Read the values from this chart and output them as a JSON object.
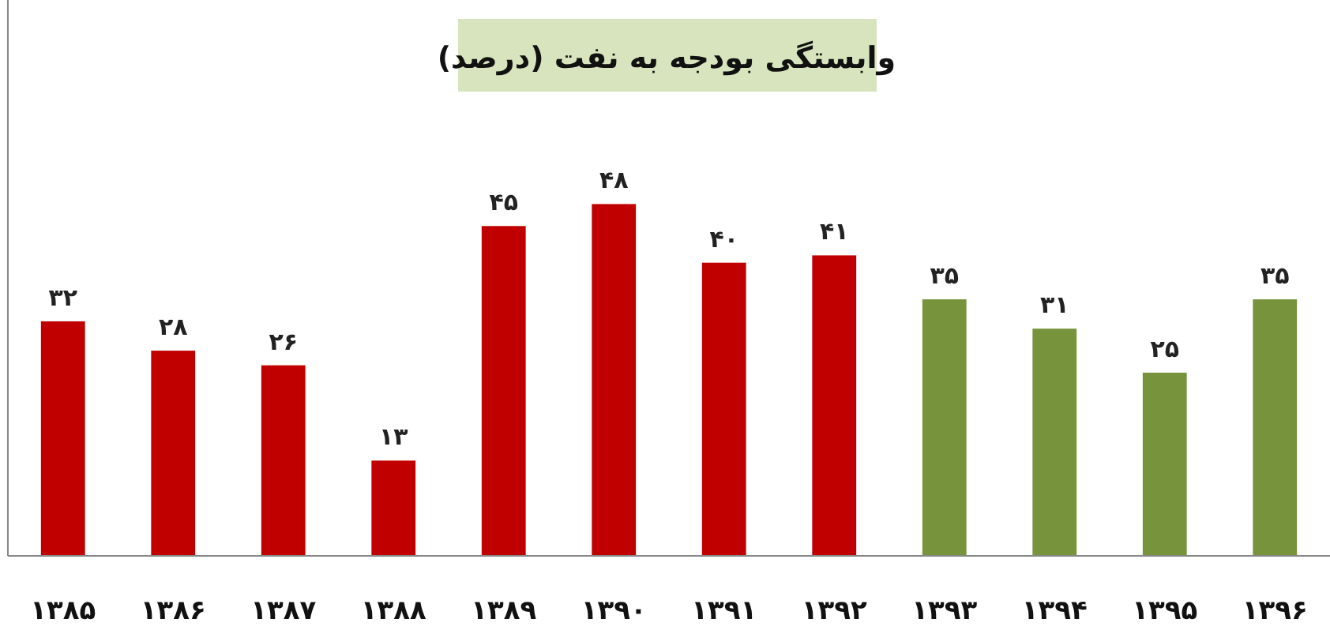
{
  "chart_data": {
    "type": "bar",
    "title": "وابستگی بودجه به نفت  (درصد)",
    "categories": [
      "۱۳۸۵",
      "۱۳۸۶",
      "۱۳۸۷",
      "۱۳۸۸",
      "۱۳۸۹",
      "۱۳۹۰",
      "۱۳۹۱",
      "۱۳۹۲",
      "۱۳۹۳",
      "۱۳۹۴",
      "۱۳۹۵",
      "۱۳۹۶"
    ],
    "values": [
      32,
      28,
      26,
      13,
      45,
      48,
      40,
      41,
      35,
      31,
      25,
      35
    ],
    "value_labels": [
      "۳۲",
      "۲۸",
      "۲۶",
      "۱۳",
      "۴۵",
      "۴۸",
      "۴۰",
      "۴۱",
      "۳۵",
      "۳۱",
      "۲۵",
      "۳۵"
    ],
    "colors": [
      "#c00000",
      "#c00000",
      "#c00000",
      "#c00000",
      "#c00000",
      "#c00000",
      "#c00000",
      "#c00000",
      "#77933c",
      "#77933c",
      "#77933c",
      "#77933c"
    ]
  }
}
